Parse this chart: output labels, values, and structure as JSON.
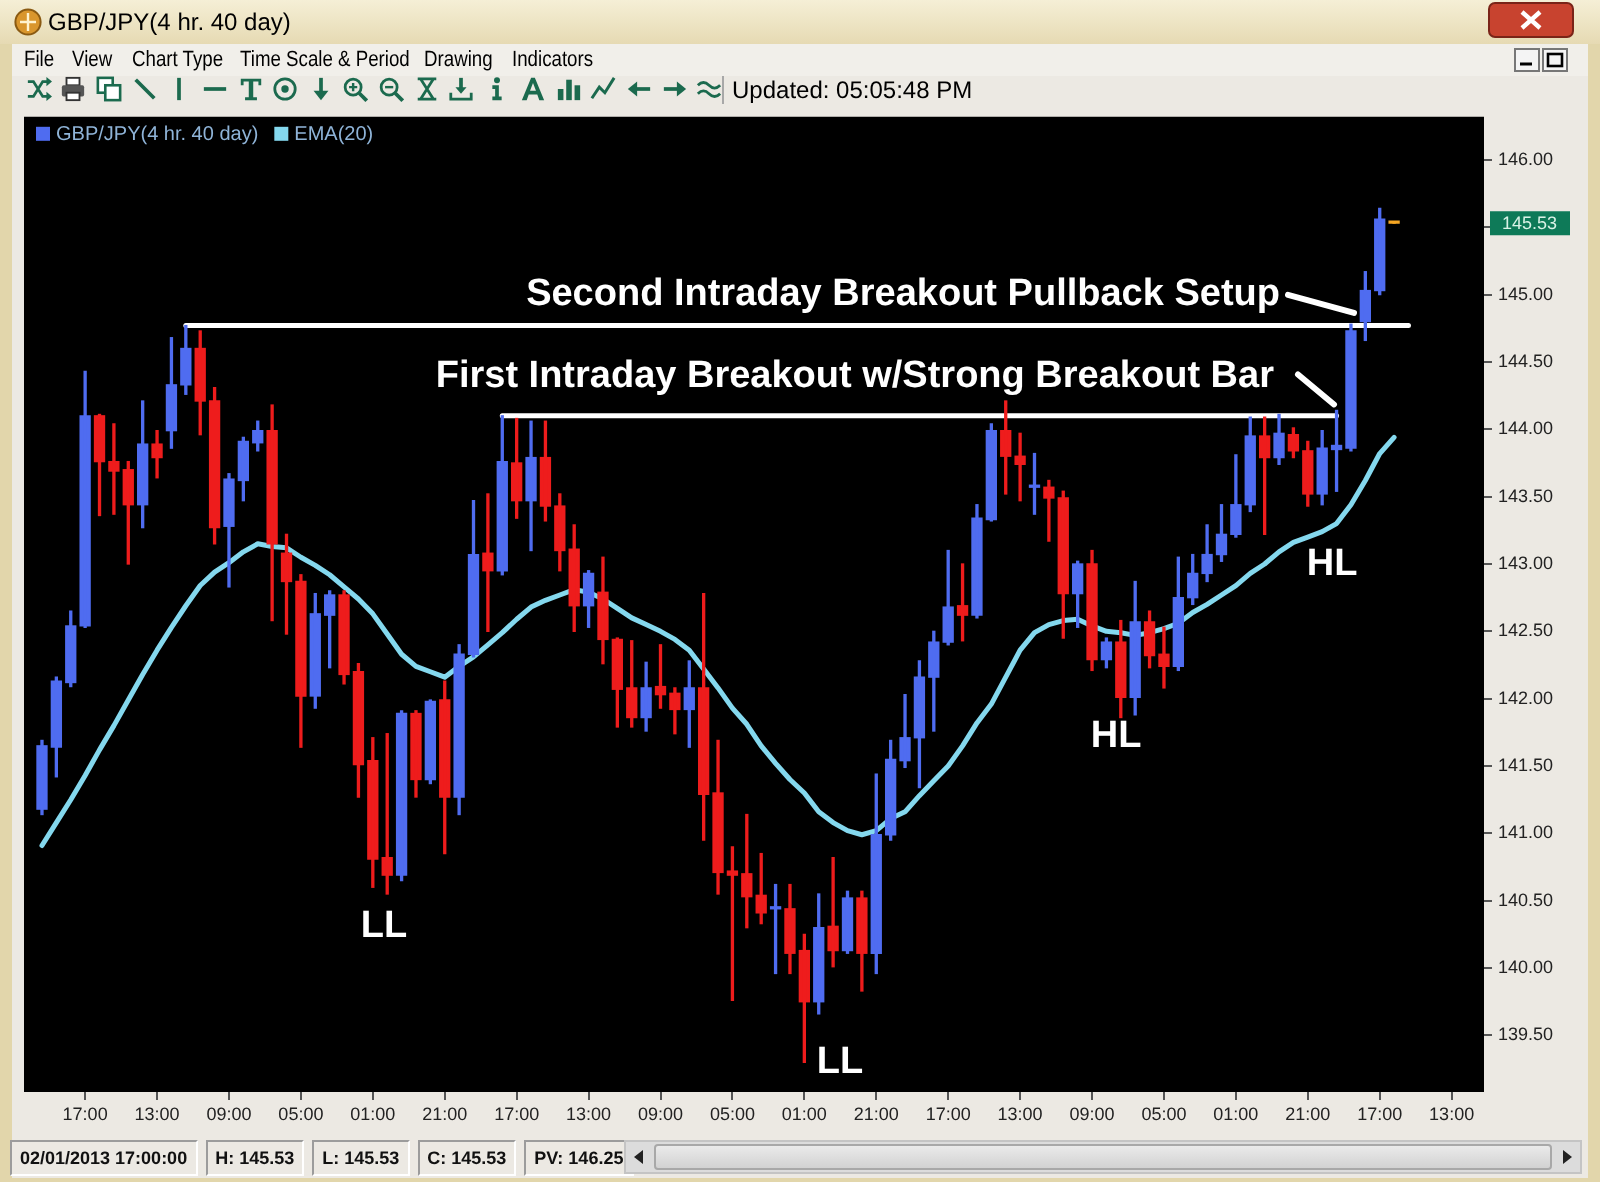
{
  "chart_data": {
    "type": "candlestick",
    "title": "GBP/JPY(4 hr. 40 day)",
    "categories": [
      null,
      null,
      null,
      "17:00",
      null,
      null,
      null,
      null,
      "13:00",
      null,
      null,
      null,
      null,
      "09:00",
      null,
      null,
      null,
      null,
      "05:00",
      null,
      null,
      null,
      null,
      "01:00",
      null,
      null,
      null,
      null,
      "21:00",
      null,
      null,
      null,
      null,
      "17:00",
      null,
      null,
      null,
      null,
      "13:00",
      null,
      null,
      null,
      null,
      "09:00",
      null,
      null,
      null,
      null,
      "05:00",
      null,
      null,
      null,
      null,
      "01:00",
      null,
      null,
      null,
      null,
      "21:00",
      null,
      null,
      null,
      null,
      "17:00",
      null,
      null,
      null,
      null,
      "13:00",
      null,
      null,
      null,
      null,
      "09:00",
      null,
      null,
      null,
      null,
      "05:00",
      null,
      null,
      null,
      null,
      "01:00",
      null,
      null,
      null,
      null,
      "21:00",
      null,
      null,
      null,
      null,
      "17:00",
      null,
      null,
      null,
      null,
      "13:00",
      null,
      null
    ],
    "series": [
      {
        "name": "GBP/JPY(4 hr. 40 day)",
        "color": "#4f6cf0",
        "colors": [
          "#4f6cf0",
          "#4f6cf0",
          "#4f6cf0",
          "#4f6cf0",
          "#ee1c1c",
          "#ee1c1c",
          "#ee1c1c",
          "#4f6cf0",
          "#ee1c1c",
          "#4f6cf0",
          "#4f6cf0",
          "#ee1c1c",
          "#ee1c1c",
          "#4f6cf0",
          "#4f6cf0",
          "#4f6cf0",
          "#ee1c1c",
          "#ee1c1c",
          "#ee1c1c",
          "#4f6cf0",
          "#4f6cf0",
          "#ee1c1c",
          "#ee1c1c",
          "#ee1c1c",
          "#ee1c1c",
          "#4f6cf0",
          "#ee1c1c",
          "#4f6cf0",
          "#ee1c1c",
          "#4f6cf0",
          "#4f6cf0",
          "#ee1c1c",
          "#4f6cf0",
          "#ee1c1c",
          "#4f6cf0",
          "#ee1c1c",
          "#ee1c1c",
          "#ee1c1c",
          "#4f6cf0",
          "#ee1c1c",
          "#ee1c1c",
          "#ee1c1c",
          "#4f6cf0",
          "#ee1c1c",
          "#ee1c1c",
          "#4f6cf0",
          "#ee1c1c",
          "#ee1c1c",
          "#ee1c1c",
          "#ee1c1c",
          "#ee1c1c",
          "#4f6cf0",
          "#ee1c1c",
          "#ee1c1c",
          "#4f6cf0",
          "#ee1c1c",
          "#4f6cf0",
          "#ee1c1c",
          "#4f6cf0",
          "#4f6cf0",
          "#4f6cf0",
          "#4f6cf0",
          "#4f6cf0",
          "#4f6cf0",
          "#ee1c1c",
          "#4f6cf0",
          "#4f6cf0",
          "#ee1c1c",
          "#ee1c1c",
          "#4f6cf0",
          "#ee1c1c",
          "#ee1c1c",
          "#4f6cf0",
          "#ee1c1c",
          "#4f6cf0",
          "#ee1c1c",
          "#4f6cf0",
          "#ee1c1c",
          "#ee1c1c",
          "#4f6cf0",
          "#4f6cf0",
          "#4f6cf0",
          "#4f6cf0",
          "#4f6cf0",
          "#4f6cf0",
          "#ee1c1c",
          "#4f6cf0",
          "#ee1c1c",
          "#ee1c1c",
          "#4f6cf0",
          "#4f6cf0",
          "#4f6cf0",
          "#4f6cf0",
          "#4f6cf0",
          "#f5a623",
          null,
          null,
          null,
          null,
          null,
          null
        ],
        "ohlc": [
          [
            141.18,
            141.69,
            141.14,
            141.65
          ],
          [
            141.64,
            142.16,
            141.42,
            142.13
          ],
          [
            142.12,
            142.65,
            142.09,
            142.54
          ],
          [
            142.54,
            144.43,
            142.53,
            144.1
          ],
          [
            144.1,
            144.11,
            143.36,
            143.76
          ],
          [
            143.76,
            144.04,
            143.37,
            143.69
          ],
          [
            143.7,
            143.76,
            143.0,
            143.44
          ],
          [
            143.44,
            144.21,
            143.27,
            143.89
          ],
          [
            143.89,
            143.99,
            143.64,
            143.79
          ],
          [
            143.99,
            144.68,
            143.86,
            144.33
          ],
          [
            144.33,
            144.77,
            144.26,
            144.6
          ],
          [
            144.6,
            144.73,
            143.96,
            144.21
          ],
          [
            144.21,
            144.31,
            143.15,
            143.27
          ],
          [
            143.28,
            143.67,
            142.83,
            143.63
          ],
          [
            143.62,
            143.94,
            143.47,
            143.91
          ],
          [
            143.9,
            144.06,
            143.84,
            143.99
          ],
          [
            143.99,
            144.18,
            142.58,
            143.15
          ],
          [
            143.08,
            143.22,
            142.48,
            142.87
          ],
          [
            142.87,
            142.92,
            141.64,
            142.02
          ],
          [
            142.02,
            142.78,
            141.93,
            142.63
          ],
          [
            142.62,
            142.8,
            142.23,
            142.77
          ],
          [
            142.77,
            142.8,
            142.11,
            142.18
          ],
          [
            142.2,
            142.26,
            141.27,
            141.51
          ],
          [
            141.54,
            141.71,
            140.6,
            140.81
          ],
          [
            140.82,
            141.74,
            140.55,
            140.69
          ],
          [
            140.69,
            141.91,
            140.65,
            141.89
          ],
          [
            141.89,
            141.91,
            141.27,
            141.4
          ],
          [
            141.4,
            141.99,
            141.37,
            141.98
          ],
          [
            141.99,
            142.13,
            140.85,
            141.27
          ],
          [
            141.27,
            142.4,
            141.14,
            142.33
          ],
          [
            142.33,
            143.47,
            142.31,
            143.07
          ],
          [
            143.08,
            143.52,
            142.5,
            142.95
          ],
          [
            142.95,
            144.1,
            142.92,
            143.76
          ],
          [
            143.75,
            144.08,
            143.34,
            143.47
          ],
          [
            143.47,
            144.06,
            143.1,
            143.79
          ],
          [
            143.79,
            144.06,
            143.32,
            143.43
          ],
          [
            143.43,
            143.52,
            142.95,
            143.1
          ],
          [
            143.11,
            143.29,
            142.5,
            142.69
          ],
          [
            142.69,
            142.95,
            142.53,
            142.93
          ],
          [
            142.79,
            143.05,
            142.26,
            142.44
          ],
          [
            142.44,
            142.45,
            141.79,
            142.07
          ],
          [
            142.08,
            142.43,
            141.79,
            141.86
          ],
          [
            141.86,
            142.27,
            141.76,
            142.08
          ],
          [
            142.09,
            142.4,
            141.93,
            142.03
          ],
          [
            142.04,
            142.08,
            141.74,
            141.92
          ],
          [
            141.92,
            142.28,
            141.64,
            142.08
          ],
          [
            142.08,
            142.78,
            140.95,
            141.29
          ],
          [
            141.3,
            141.69,
            140.55,
            140.71
          ],
          [
            140.72,
            140.9,
            139.76,
            140.69
          ],
          [
            140.7,
            141.14,
            140.3,
            140.53
          ],
          [
            140.54,
            140.85,
            140.33,
            140.41
          ],
          [
            140.44,
            140.62,
            139.96,
            140.45
          ],
          [
            140.44,
            140.62,
            139.96,
            140.11
          ],
          [
            140.13,
            140.25,
            139.3,
            139.75
          ],
          [
            139.75,
            140.55,
            139.66,
            140.3
          ],
          [
            140.31,
            140.82,
            140.01,
            140.13
          ],
          [
            140.13,
            140.57,
            140.11,
            140.52
          ],
          [
            140.52,
            140.57,
            139.83,
            140.11
          ],
          [
            140.11,
            141.44,
            139.96,
            140.99
          ],
          [
            140.99,
            141.69,
            140.95,
            141.55
          ],
          [
            141.54,
            142.03,
            141.49,
            141.71
          ],
          [
            141.71,
            142.28,
            141.34,
            142.16
          ],
          [
            142.16,
            142.5,
            141.76,
            142.42
          ],
          [
            142.42,
            143.1,
            142.4,
            142.68
          ],
          [
            142.69,
            143.0,
            142.43,
            142.62
          ],
          [
            142.62,
            143.44,
            142.6,
            143.34
          ],
          [
            143.33,
            144.04,
            143.32,
            143.99
          ],
          [
            143.99,
            144.21,
            143.52,
            143.8
          ],
          [
            143.8,
            143.97,
            143.47,
            143.74
          ],
          [
            143.57,
            143.82,
            143.37,
            143.58
          ],
          [
            143.57,
            143.62,
            143.17,
            143.49
          ],
          [
            143.49,
            143.54,
            142.45,
            142.78
          ],
          [
            142.78,
            143.02,
            142.53,
            143.0
          ],
          [
            143.0,
            143.1,
            142.21,
            142.29
          ],
          [
            142.29,
            142.45,
            142.23,
            142.42
          ],
          [
            142.42,
            142.58,
            141.86,
            142.01
          ],
          [
            142.01,
            142.87,
            141.88,
            142.57
          ],
          [
            142.57,
            142.65,
            142.23,
            142.32
          ],
          [
            142.33,
            142.53,
            142.08,
            142.24
          ],
          [
            142.24,
            143.05,
            142.21,
            142.75
          ],
          [
            142.75,
            143.07,
            142.7,
            142.93
          ],
          [
            142.93,
            143.29,
            142.87,
            143.07
          ],
          [
            143.07,
            143.44,
            143.02,
            143.22
          ],
          [
            143.22,
            143.81,
            143.2,
            143.44
          ],
          [
            143.44,
            144.09,
            143.39,
            143.95
          ],
          [
            143.95,
            144.09,
            143.22,
            143.79
          ],
          [
            143.79,
            144.11,
            143.74,
            143.97
          ],
          [
            143.96,
            144.01,
            143.79,
            143.84
          ],
          [
            143.84,
            143.91,
            143.43,
            143.52
          ],
          [
            143.52,
            143.99,
            143.44,
            143.86
          ],
          [
            143.85,
            144.14,
            143.54,
            143.88
          ],
          [
            143.86,
            144.78,
            143.84,
            144.73
          ],
          [
            144.8,
            145.17,
            144.66,
            145.03
          ],
          [
            145.03,
            145.64,
            145.0,
            145.56
          ],
          [
            145.53,
            145.53,
            145.53,
            145.53
          ],
          null,
          null,
          null,
          null,
          null,
          null
        ]
      },
      {
        "name": "EMA(20)",
        "type": "line",
        "color": "#84d8ee",
        "values": [
          140.91,
          141.08,
          141.25,
          141.43,
          141.62,
          141.8,
          141.99,
          142.18,
          142.36,
          142.53,
          142.69,
          142.84,
          142.94,
          143.01,
          143.09,
          143.15,
          143.13,
          143.12,
          143.05,
          142.99,
          142.92,
          142.83,
          142.74,
          142.63,
          142.48,
          142.33,
          142.24,
          142.2,
          142.16,
          142.24,
          142.31,
          142.4,
          142.49,
          142.59,
          142.68,
          142.73,
          142.77,
          142.81,
          142.79,
          142.74,
          142.67,
          142.6,
          142.55,
          142.5,
          142.44,
          142.36,
          142.22,
          142.08,
          141.93,
          141.81,
          141.65,
          141.52,
          141.4,
          141.3,
          141.16,
          141.08,
          141.02,
          140.99,
          141.02,
          141.11,
          141.16,
          141.28,
          141.39,
          141.5,
          141.65,
          141.82,
          141.96,
          142.16,
          142.36,
          142.49,
          142.55,
          142.58,
          142.59,
          142.54,
          142.5,
          142.49,
          142.47,
          142.49,
          142.52,
          142.56,
          142.64,
          142.7,
          142.77,
          142.84,
          142.93,
          143.0,
          143.09,
          143.16,
          143.2,
          143.24,
          143.3,
          143.44,
          143.62,
          143.82,
          143.94,
          null,
          null,
          null,
          null,
          null,
          null
        ]
      },
      {
        "type": "line",
        "color": "#ffffff",
        "values": [
          null,
          null,
          null,
          null,
          null,
          null,
          null,
          null,
          null,
          null,
          144.77,
          null,
          null,
          null,
          null,
          null,
          null,
          null,
          null,
          null,
          null,
          null,
          null,
          null,
          null,
          null,
          null,
          null,
          null,
          null,
          null,
          null,
          null,
          null,
          null,
          null,
          null,
          null,
          null,
          null,
          null,
          null,
          null,
          null,
          null,
          null,
          null,
          null,
          null,
          null,
          null,
          null,
          null,
          null,
          null,
          null,
          null,
          null,
          null,
          null,
          null,
          null,
          null,
          null,
          null,
          null,
          null,
          null,
          null,
          null,
          null,
          null,
          null,
          null,
          null,
          null,
          null,
          null,
          null,
          null,
          null,
          null,
          null,
          null,
          null,
          null,
          null,
          null,
          null,
          null,
          null,
          null,
          null,
          null,
          null,
          144.77,
          null,
          null,
          null,
          null,
          null
        ]
      },
      {
        "type": "line",
        "color": "#ffffff",
        "values": [
          null,
          null,
          null,
          null,
          null,
          null,
          null,
          null,
          null,
          null,
          null,
          null,
          null,
          null,
          null,
          null,
          null,
          null,
          null,
          null,
          null,
          null,
          null,
          null,
          null,
          null,
          null,
          null,
          null,
          null,
          null,
          null,
          144.1,
          null,
          null,
          null,
          null,
          null,
          null,
          null,
          null,
          null,
          null,
          null,
          null,
          null,
          null,
          null,
          null,
          null,
          null,
          null,
          null,
          null,
          null,
          null,
          null,
          null,
          null,
          null,
          null,
          null,
          null,
          null,
          null,
          null,
          null,
          null,
          null,
          null,
          null,
          null,
          null,
          null,
          null,
          null,
          null,
          null,
          null,
          null,
          null,
          null,
          null,
          null,
          null,
          null,
          null,
          null,
          null,
          null,
          144.1,
          null,
          null,
          null,
          null,
          null,
          null,
          null,
          null,
          null,
          null
        ]
      }
    ],
    "ylim": [
      139.08,
      146.32
    ],
    "yticks": [
      {
        "value": 139.5,
        "label": "139.50"
      },
      {
        "value": 140,
        "label": "140.00"
      },
      {
        "value": 140.5,
        "label": "140.50"
      },
      {
        "value": 141,
        "label": "141.00"
      },
      {
        "value": 141.5,
        "label": "141.50"
      },
      {
        "value": 142,
        "label": "142.00"
      },
      {
        "value": 142.5,
        "label": "142.50"
      },
      {
        "value": 143,
        "label": "143.00"
      },
      {
        "value": 143.5,
        "label": "143.50"
      },
      {
        "value": 144,
        "label": "144.00"
      },
      {
        "value": 144.5,
        "label": "144.50"
      },
      {
        "value": 145,
        "label": "145.00"
      },
      {
        "value": 145.5,
        "label": null
      },
      {
        "value": 146,
        "label": "146.00"
      }
    ],
    "legend": "top left",
    "annotations": [
      "File",
      "View",
      "Chart Type",
      "Time Scale & Period",
      "Drawing",
      "Indicators",
      "Updated: 05:05:48 PM",
      "02/01/2013 17:00:00",
      "H: 145.53",
      "L: 145.53",
      "C: 145.53",
      "PV: 146.25",
      {
        "text": "Second Intraday Breakout Pullback Setup",
        "y": 144.82
      },
      {
        "text": "First Intraday Breakout w/Strong Breakout Bar",
        "y": 144.14
      },
      "LL",
      "LL",
      "HL",
      "HL",
      {
        "text": "145.53",
        "y": 145.53
      }
    ]
  }
}
